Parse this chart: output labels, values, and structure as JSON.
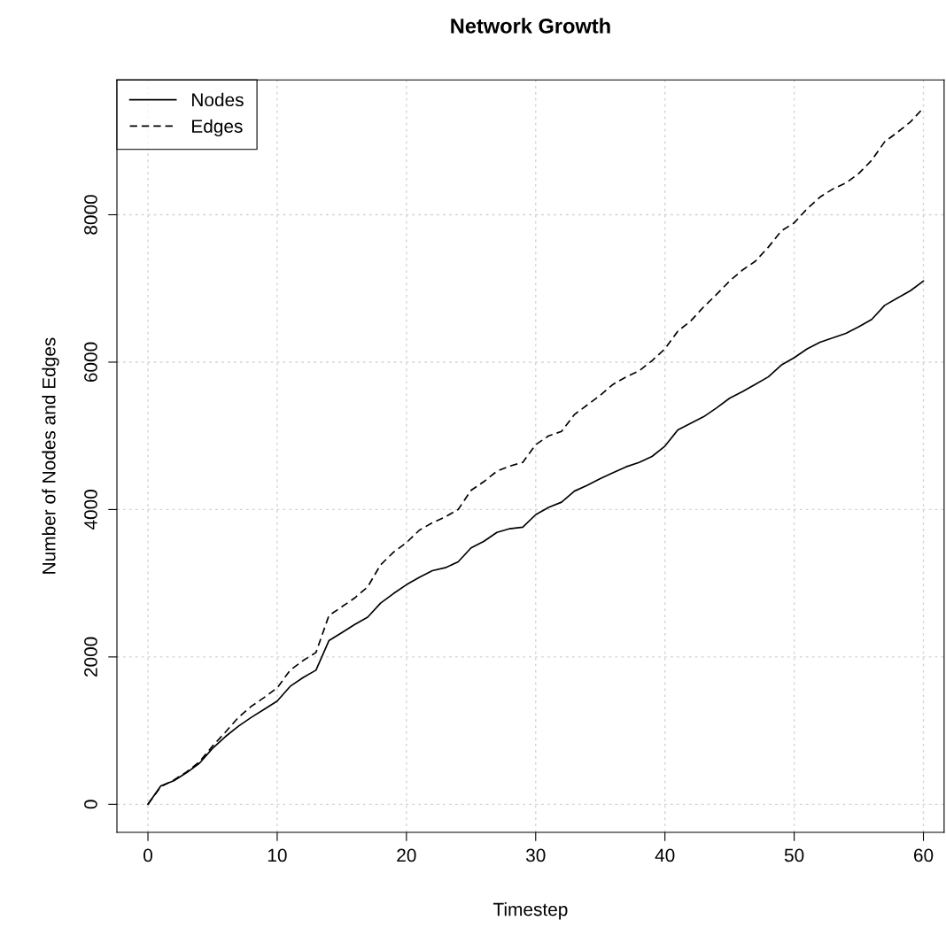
{
  "chart_data": {
    "type": "line",
    "title": "Network Growth",
    "xlabel": "Timestep",
    "ylabel": "Number of Nodes and Edges",
    "x": [
      0,
      1,
      2,
      3,
      4,
      5,
      6,
      7,
      8,
      9,
      10,
      11,
      12,
      13,
      14,
      15,
      16,
      17,
      18,
      19,
      20,
      21,
      22,
      23,
      24,
      25,
      26,
      27,
      28,
      29,
      30,
      31,
      32,
      33,
      34,
      35,
      36,
      37,
      38,
      39,
      40,
      41,
      42,
      43,
      44,
      45,
      46,
      47,
      48,
      49,
      50,
      51,
      52,
      53,
      54,
      55,
      56,
      57,
      58,
      59,
      60
    ],
    "series": [
      {
        "name": "Nodes",
        "color": "#000000",
        "line_style": "solid",
        "values": [
          0,
          250,
          320,
          430,
          560,
          760,
          920,
          1060,
          1180,
          1290,
          1400,
          1600,
          1720,
          1820,
          2220,
          2330,
          2440,
          2540,
          2730,
          2860,
          2980,
          3080,
          3170,
          3210,
          3290,
          3480,
          3570,
          3690,
          3740,
          3760,
          3930,
          4030,
          4100,
          4250,
          4330,
          4420,
          4500,
          4580,
          4640,
          4720,
          4860,
          5080,
          5170,
          5260,
          5380,
          5510,
          5600,
          5700,
          5800,
          5960,
          6060,
          6180,
          6270,
          6330,
          6390,
          6480,
          6580,
          6770,
          6870,
          6970,
          7100
        ]
      },
      {
        "name": "Edges",
        "color": "#000000",
        "line_style": "dashed",
        "values": [
          0,
          240,
          330,
          440,
          580,
          790,
          980,
          1180,
          1330,
          1450,
          1580,
          1820,
          1950,
          2060,
          2560,
          2680,
          2800,
          2950,
          3250,
          3420,
          3550,
          3720,
          3820,
          3900,
          4000,
          4260,
          4380,
          4520,
          4590,
          4640,
          4880,
          5000,
          5060,
          5290,
          5420,
          5550,
          5700,
          5800,
          5880,
          6020,
          6180,
          6420,
          6560,
          6750,
          6920,
          7100,
          7250,
          7370,
          7560,
          7780,
          7890,
          8080,
          8240,
          8350,
          8430,
          8560,
          8740,
          8990,
          9120,
          9260,
          9450
        ]
      }
    ],
    "xlim": [
      -2.4,
      61.6
    ],
    "ylim": [
      -380,
      9830
    ],
    "xticks": [
      0,
      10,
      20,
      30,
      40,
      50,
      60
    ],
    "yticks": [
      0,
      2000,
      4000,
      6000,
      8000
    ],
    "grid": true,
    "legend": "top left",
    "marker": "none"
  }
}
